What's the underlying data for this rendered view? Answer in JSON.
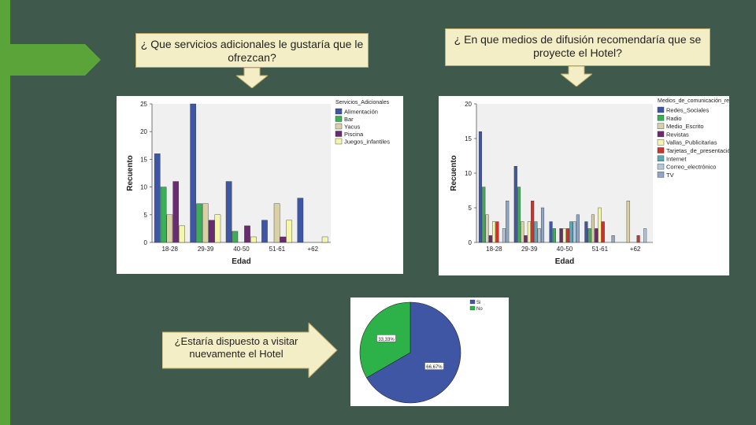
{
  "questions": {
    "q1": "¿ Que servicios adicionales le gustaría que le ofrezcan?",
    "q2": "¿ En que medios de difusión recomendaría que se proyecte el Hotel?",
    "q3": "¿Estaría dispuesto a visitar nuevamente el Hotel"
  },
  "colors": {
    "background": "#3f5a4c",
    "accent_green": "#5aa43a",
    "box_fill": "#f4eec6"
  },
  "chart_data": [
    {
      "type": "bar",
      "title": "",
      "xlabel": "Edad",
      "ylabel": "Recuento",
      "ylim": [
        0,
        25
      ],
      "yticks": [
        "0",
        "5",
        "10",
        "15",
        "20",
        "25"
      ],
      "categories": [
        "18-28",
        "29-39",
        "40-50",
        "51-61",
        "+62"
      ],
      "legend_title": "Servicios_Adicionales",
      "legend_position": "right",
      "series": [
        {
          "name": "Alimentación",
          "color": "#3f56a5",
          "values": [
            16,
            25,
            11,
            4,
            8
          ]
        },
        {
          "name": "Bar",
          "color": "#3cae58",
          "values": [
            10,
            7,
            2,
            0,
            0
          ]
        },
        {
          "name": "Yacus",
          "color": "#d8d1a6",
          "values": [
            5,
            7,
            0,
            7,
            0
          ]
        },
        {
          "name": "Piscina",
          "color": "#6a2c70",
          "values": [
            11,
            4,
            3,
            1,
            0
          ]
        },
        {
          "name": "Juegos_infantiles",
          "color": "#f6f6a8",
          "values": [
            3,
            5,
            1,
            4,
            1
          ]
        }
      ]
    },
    {
      "type": "bar",
      "title": "",
      "xlabel": "Edad",
      "ylabel": "Recuento",
      "ylim": [
        0,
        20
      ],
      "yticks": [
        "0",
        "5",
        "10",
        "15",
        "20"
      ],
      "categories": [
        "18-28",
        "29-39",
        "40-50",
        "51-61",
        "+62"
      ],
      "legend_title": "Medios_de_comunicación_recomendaría",
      "legend_position": "right",
      "series": [
        {
          "name": "Redes_Sociales",
          "color": "#3f56a5",
          "values": [
            16,
            11,
            3,
            3,
            0
          ]
        },
        {
          "name": "Radio",
          "color": "#3cae58",
          "values": [
            8,
            8,
            2,
            2,
            0
          ]
        },
        {
          "name": "Medio_Escrito",
          "color": "#d8d1a6",
          "values": [
            4,
            3,
            0,
            4,
            6
          ]
        },
        {
          "name": "Revistas",
          "color": "#6a2c70",
          "values": [
            1,
            1,
            2,
            2,
            0
          ]
        },
        {
          "name": "Vallas_Publicitarias",
          "color": "#f6f6a8",
          "values": [
            3,
            3,
            2,
            5,
            0
          ]
        },
        {
          "name": "Tarjetas_de_presentación",
          "color": "#d0312d",
          "values": [
            3,
            6,
            2,
            3,
            1
          ]
        },
        {
          "name": "Internet",
          "color": "#5aa9b8",
          "values": [
            0,
            3,
            3,
            0,
            0
          ]
        },
        {
          "name": "Correo_electrónico",
          "color": "#b4c7d8",
          "values": [
            2,
            2,
            3,
            0,
            2
          ]
        },
        {
          "name": "TV",
          "color": "#8fa6c4",
          "values": [
            6,
            5,
            4,
            1,
            0
          ]
        }
      ]
    },
    {
      "type": "pie",
      "title": "",
      "legend_position": "top-right",
      "slices": [
        {
          "name": "Si",
          "value": 66.67,
          "label": "66,67%",
          "color": "#3f56a5"
        },
        {
          "name": "No",
          "value": 33.33,
          "label": "33,33%",
          "color": "#2db24a"
        }
      ]
    }
  ]
}
